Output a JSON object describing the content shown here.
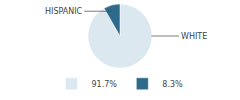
{
  "chart_data": {
    "type": "pie",
    "categories": [
      "91.7%",
      "8.3%"
    ],
    "values": [
      91.7,
      8.3
    ],
    "colors": [
      "#dce8f0",
      "#2e6b8a"
    ],
    "annotations": [
      "WHITE",
      "HISPANIC"
    ],
    "legend": "bottom"
  }
}
